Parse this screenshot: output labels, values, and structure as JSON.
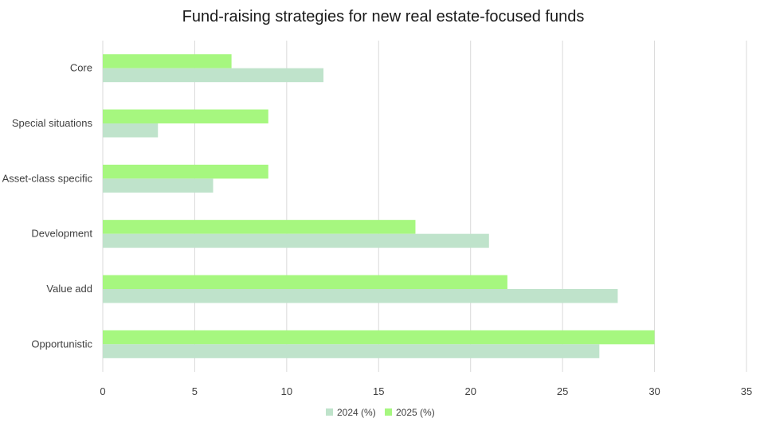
{
  "chart_data": {
    "type": "bar",
    "orientation": "horizontal",
    "title": "Fund-raising strategies for new real estate-focused funds",
    "xlabel": "",
    "ylabel": "",
    "categories": [
      "Core",
      "Special situations",
      "Asset-class specific",
      "Development",
      "Value add",
      "Opportunistic"
    ],
    "series": [
      {
        "name": "2024 (%)",
        "color": "#bfe3cb",
        "values": [
          12,
          3,
          6,
          21,
          28,
          27
        ]
      },
      {
        "name": "2025 (%)",
        "color": "#a6f77f",
        "values": [
          7,
          9,
          9,
          17,
          22,
          30
        ]
      }
    ],
    "xlim": [
      0,
      35
    ],
    "xticks": [
      0,
      5,
      10,
      15,
      20,
      25,
      30,
      35
    ],
    "grid": true,
    "legend_position": "bottom"
  }
}
